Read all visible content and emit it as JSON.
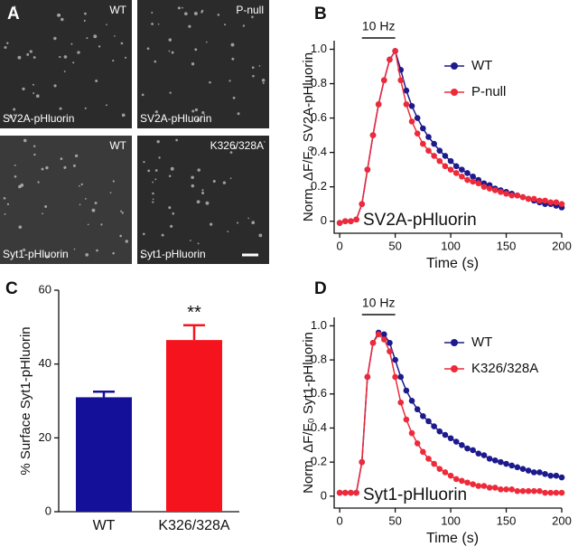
{
  "panel_labels": [
    "A",
    "B",
    "C",
    "D"
  ],
  "images": [
    {
      "genotype": "WT",
      "probe": "SV2A-pHluorin"
    },
    {
      "genotype": "P-null",
      "probe": "SV2A-pHluorin"
    },
    {
      "genotype": "WT",
      "probe": "Syt1-pHluorin"
    },
    {
      "genotype": "K326/328A",
      "probe": "Syt1-pHluorin"
    }
  ],
  "chart_data": [
    {
      "type": "line",
      "ylabel": "Norm. ΔF/F₀ SV2A-pHluorin",
      "xlabel": "Time (s)",
      "annotation": "SV2A-pHluorin",
      "stim_label": "10 Hz",
      "stim": [
        20,
        50
      ],
      "xlim": [
        -5,
        200
      ],
      "ylim": [
        -0.07,
        1.05
      ],
      "xticks": [
        0,
        50,
        100,
        150,
        200
      ],
      "yticks": [
        0,
        0.2,
        0.4,
        0.6,
        0.8,
        {
          "value": 1,
          "label": "1.0"
        }
      ],
      "x": [
        0,
        5,
        10,
        15,
        20,
        25,
        30,
        35,
        40,
        45,
        50,
        55,
        60,
        65,
        70,
        75,
        80,
        85,
        90,
        95,
        100,
        105,
        110,
        115,
        120,
        125,
        130,
        135,
        140,
        145,
        150,
        155,
        160,
        165,
        170,
        175,
        180,
        185,
        190,
        195,
        200
      ],
      "series": [
        {
          "name": "WT",
          "color": "#1c1a8c",
          "values": [
            -0.01,
            0,
            0,
            0.01,
            0.1,
            0.3,
            0.5,
            0.68,
            0.82,
            0.94,
            0.99,
            0.88,
            0.76,
            0.67,
            0.6,
            0.54,
            0.49,
            0.45,
            0.41,
            0.38,
            0.35,
            0.32,
            0.3,
            0.28,
            0.26,
            0.24,
            0.22,
            0.21,
            0.19,
            0.18,
            0.17,
            0.16,
            0.15,
            0.14,
            0.13,
            0.12,
            0.11,
            0.1,
            0.1,
            0.09,
            0.08
          ]
        },
        {
          "name": "P-null",
          "color": "#ee2a3a",
          "values": [
            -0.01,
            0,
            0,
            0.01,
            0.1,
            0.3,
            0.5,
            0.68,
            0.82,
            0.94,
            0.99,
            0.82,
            0.68,
            0.58,
            0.51,
            0.45,
            0.41,
            0.38,
            0.35,
            0.32,
            0.3,
            0.28,
            0.26,
            0.24,
            0.23,
            0.22,
            0.2,
            0.19,
            0.18,
            0.17,
            0.16,
            0.15,
            0.15,
            0.14,
            0.13,
            0.13,
            0.12,
            0.12,
            0.11,
            0.11,
            0.1
          ]
        }
      ]
    },
    {
      "type": "bar",
      "ylabel": "% Surface Syt1-pHluorin",
      "categories": [
        "WT",
        "K326/328A"
      ],
      "values": [
        31,
        46.5
      ],
      "errors": [
        1.5,
        4
      ],
      "colors": [
        "#15109a",
        "#f5141e"
      ],
      "significance": [
        null,
        "**"
      ],
      "ylim": [
        0,
        60
      ],
      "yticks": [
        0,
        20,
        40,
        60
      ]
    },
    {
      "type": "line",
      "ylabel": "Norm. ΔF/F₀ Syt1-pHluorin",
      "xlabel": "Time (s)",
      "annotation": "Syt1-pHluorin",
      "stim_label": "10 Hz",
      "stim": [
        20,
        50
      ],
      "xlim": [
        -5,
        200
      ],
      "ylim": [
        -0.07,
        1.05
      ],
      "xticks": [
        0,
        50,
        100,
        150,
        200
      ],
      "yticks": [
        0,
        0.2,
        0.4,
        0.6,
        0.8,
        {
          "value": 1,
          "label": "1.0"
        }
      ],
      "x": [
        0,
        5,
        10,
        15,
        20,
        25,
        30,
        35,
        40,
        45,
        50,
        55,
        60,
        65,
        70,
        75,
        80,
        85,
        90,
        95,
        100,
        105,
        110,
        115,
        120,
        125,
        130,
        135,
        140,
        145,
        150,
        155,
        160,
        165,
        170,
        175,
        180,
        185,
        190,
        195,
        200
      ],
      "series": [
        {
          "name": "WT",
          "color": "#1c1a8c",
          "values": [
            0.02,
            0.02,
            0.02,
            0.02,
            0.2,
            0.7,
            0.9,
            0.96,
            0.95,
            0.9,
            0.8,
            0.7,
            0.62,
            0.56,
            0.51,
            0.47,
            0.44,
            0.41,
            0.38,
            0.36,
            0.34,
            0.32,
            0.3,
            0.28,
            0.27,
            0.25,
            0.24,
            0.22,
            0.21,
            0.2,
            0.19,
            0.18,
            0.17,
            0.16,
            0.15,
            0.14,
            0.14,
            0.13,
            0.12,
            0.12,
            0.11
          ]
        },
        {
          "name": "K326/328A",
          "color": "#ee2a3a",
          "values": [
            0.02,
            0.02,
            0.02,
            0.02,
            0.2,
            0.7,
            0.9,
            0.95,
            0.92,
            0.85,
            0.7,
            0.55,
            0.45,
            0.37,
            0.31,
            0.26,
            0.22,
            0.19,
            0.16,
            0.14,
            0.12,
            0.1,
            0.09,
            0.08,
            0.07,
            0.06,
            0.06,
            0.05,
            0.05,
            0.04,
            0.04,
            0.04,
            0.03,
            0.03,
            0.03,
            0.03,
            0.03,
            0.02,
            0.02,
            0.02,
            0.02
          ]
        }
      ]
    }
  ]
}
